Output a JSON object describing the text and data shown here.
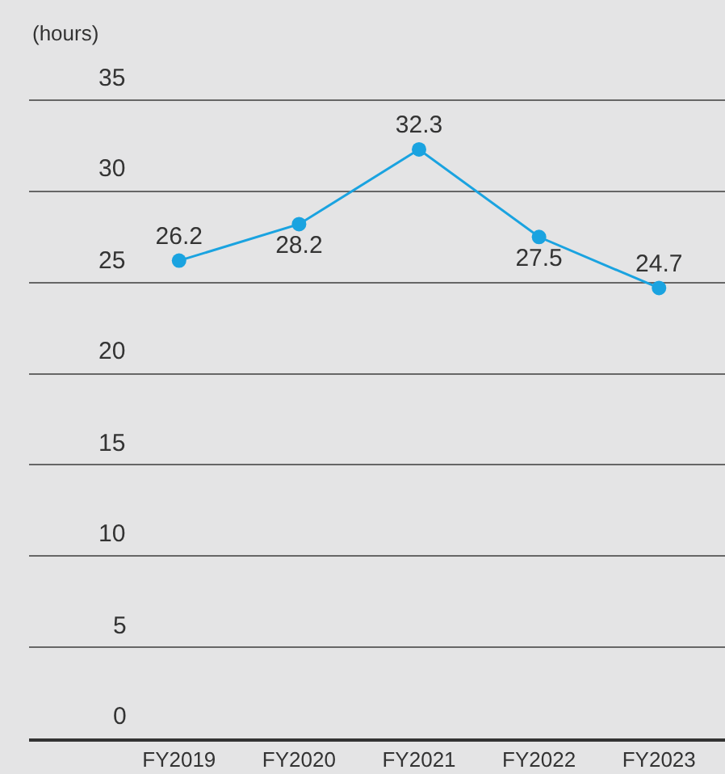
{
  "chart_data": {
    "type": "line",
    "ylabel": "(hours)",
    "categories": [
      "FY2019",
      "FY2020",
      "FY2021",
      "FY2022",
      "FY2023"
    ],
    "series": [
      {
        "color": "#1aa3e0",
        "values": [
          26.2,
          28.2,
          32.3,
          27.5,
          24.7
        ]
      }
    ],
    "ylim": [
      0,
      35
    ],
    "yticks": [
      0,
      5,
      10,
      15,
      20,
      25,
      30,
      35
    ],
    "grid": "y",
    "marker": "circle",
    "line_style": "solid",
    "data_labels": true,
    "legend": false
  }
}
